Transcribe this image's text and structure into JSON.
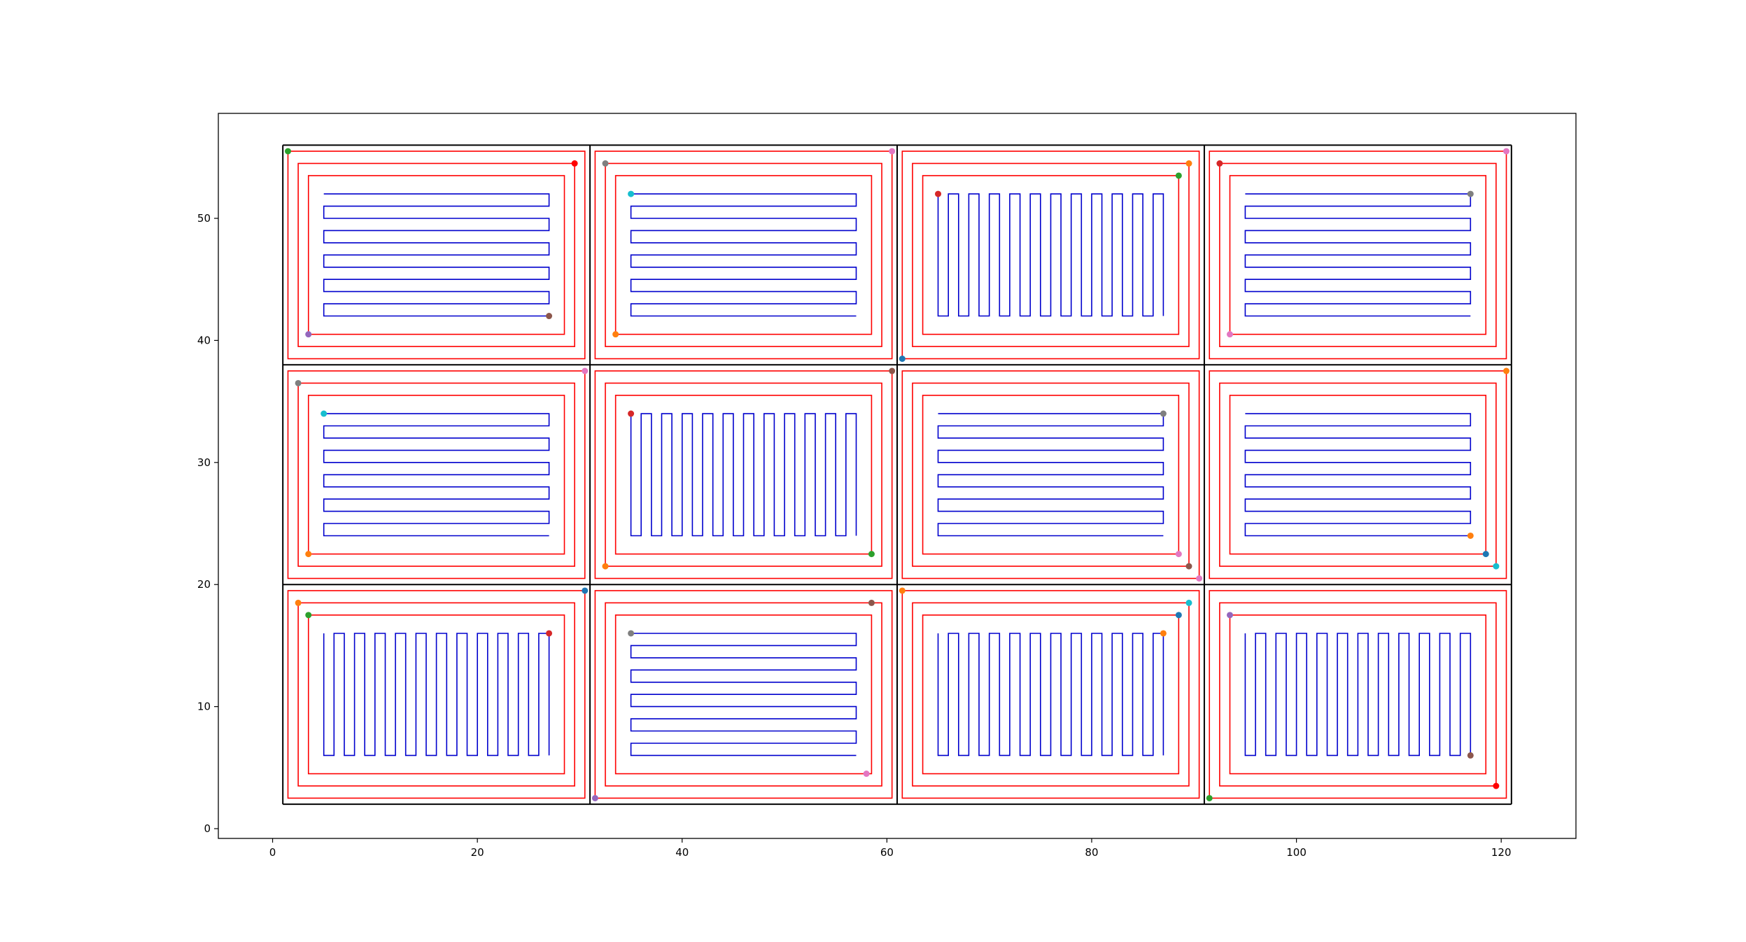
{
  "chart_data": {
    "type": "line",
    "title": "",
    "xlabel": "",
    "ylabel": "",
    "xlim": [
      -5.3,
      127.3
    ],
    "ylim": [
      -0.8,
      58.6
    ],
    "x_ticks": [
      0,
      20,
      40,
      60,
      80,
      100,
      120
    ],
    "y_ticks": [
      0,
      10,
      20,
      30,
      40,
      50
    ],
    "x_tick_labels": [
      "0",
      "20",
      "40",
      "60",
      "80",
      "100",
      "120"
    ],
    "y_tick_labels": [
      "0",
      "10",
      "20",
      "30",
      "40",
      "50"
    ],
    "grid": false,
    "legend": false,
    "colors": {
      "cell_border": "#000000",
      "perimeter": "#ff0000",
      "fill_path": "#0000cd"
    },
    "field": {
      "x_min": 1,
      "x_max": 121,
      "y_min": 2,
      "y_max": 56
    },
    "cell_edges_x": [
      1,
      31,
      61,
      91,
      121
    ],
    "cell_edges_y": [
      2,
      20,
      38,
      56
    ],
    "perimeter_offsets": [
      0.5,
      1.5,
      2.5
    ],
    "cells": [
      {
        "x0": 1,
        "x1": 31,
        "y0": 38,
        "y1": 56,
        "pattern": "horizontal"
      },
      {
        "x0": 31,
        "x1": 61,
        "y0": 38,
        "y1": 56,
        "pattern": "horizontal"
      },
      {
        "x0": 61,
        "x1": 91,
        "y0": 38,
        "y1": 56,
        "pattern": "vertical"
      },
      {
        "x0": 91,
        "x1": 121,
        "y0": 38,
        "y1": 56,
        "pattern": "horizontal"
      },
      {
        "x0": 1,
        "x1": 31,
        "y0": 20,
        "y1": 38,
        "pattern": "horizontal"
      },
      {
        "x0": 31,
        "x1": 61,
        "y0": 20,
        "y1": 38,
        "pattern": "vertical"
      },
      {
        "x0": 61,
        "x1": 91,
        "y0": 20,
        "y1": 38,
        "pattern": "horizontal"
      },
      {
        "x0": 91,
        "x1": 121,
        "y0": 20,
        "y1": 38,
        "pattern": "horizontal"
      },
      {
        "x0": 1,
        "x1": 31,
        "y0": 2,
        "y1": 20,
        "pattern": "vertical"
      },
      {
        "x0": 31,
        "x1": 61,
        "y0": 2,
        "y1": 20,
        "pattern": "horizontal"
      },
      {
        "x0": 61,
        "x1": 91,
        "y0": 2,
        "y1": 20,
        "pattern": "vertical"
      },
      {
        "x0": 91,
        "x1": 121,
        "y0": 2,
        "y1": 20,
        "pattern": "vertical"
      }
    ],
    "markers": [
      {
        "x": 1.5,
        "y": 55.5,
        "color": "#2ca02c"
      },
      {
        "x": 29.5,
        "y": 54.5,
        "color": "#ff0000"
      },
      {
        "x": 27,
        "y": 42,
        "color": "#8c564b"
      },
      {
        "x": 3.5,
        "y": 40.5,
        "color": "#9467bd"
      },
      {
        "x": 32.5,
        "y": 54.5,
        "color": "#7f7f7f"
      },
      {
        "x": 60.5,
        "y": 55.5,
        "color": "#e377c2"
      },
      {
        "x": 35,
        "y": 52,
        "color": "#17becf"
      },
      {
        "x": 33.5,
        "y": 40.5,
        "color": "#ff7f0e"
      },
      {
        "x": 65,
        "y": 52,
        "color": "#d62728"
      },
      {
        "x": 89.5,
        "y": 54.5,
        "color": "#ff7f0e"
      },
      {
        "x": 88.5,
        "y": 53.5,
        "color": "#2ca02c"
      },
      {
        "x": 61.5,
        "y": 38.5,
        "color": "#1f77b4"
      },
      {
        "x": 92.5,
        "y": 54.5,
        "color": "#d62728"
      },
      {
        "x": 120.5,
        "y": 55.5,
        "color": "#e377c2"
      },
      {
        "x": 117,
        "y": 52,
        "color": "#7f7f7f"
      },
      {
        "x": 93.5,
        "y": 40.5,
        "color": "#e377c2"
      },
      {
        "x": 2.5,
        "y": 36.5,
        "color": "#7f7f7f"
      },
      {
        "x": 30.5,
        "y": 37.5,
        "color": "#e377c2"
      },
      {
        "x": 5,
        "y": 34,
        "color": "#17becf"
      },
      {
        "x": 3.5,
        "y": 22.5,
        "color": "#ff7f0e"
      },
      {
        "x": 60.5,
        "y": 37.5,
        "color": "#8c564b"
      },
      {
        "x": 35,
        "y": 34,
        "color": "#d62728"
      },
      {
        "x": 58.5,
        "y": 22.5,
        "color": "#2ca02c"
      },
      {
        "x": 32.5,
        "y": 21.5,
        "color": "#ff7f0e"
      },
      {
        "x": 87,
        "y": 34,
        "color": "#7f7f7f"
      },
      {
        "x": 88.5,
        "y": 22.5,
        "color": "#e377c2"
      },
      {
        "x": 89.5,
        "y": 21.5,
        "color": "#8c564b"
      },
      {
        "x": 90.5,
        "y": 20.5,
        "color": "#e377c2"
      },
      {
        "x": 120.5,
        "y": 37.5,
        "color": "#ff7f0e"
      },
      {
        "x": 117,
        "y": 24,
        "color": "#ff7f0e"
      },
      {
        "x": 118.5,
        "y": 22.5,
        "color": "#1f77b4"
      },
      {
        "x": 119.5,
        "y": 21.5,
        "color": "#17becf"
      },
      {
        "x": 2.5,
        "y": 18.5,
        "color": "#ff7f0e"
      },
      {
        "x": 3.5,
        "y": 17.5,
        "color": "#2ca02c"
      },
      {
        "x": 27,
        "y": 16,
        "color": "#d62728"
      },
      {
        "x": 30.5,
        "y": 19.5,
        "color": "#1f77b4"
      },
      {
        "x": 35,
        "y": 16,
        "color": "#7f7f7f"
      },
      {
        "x": 58.5,
        "y": 18.5,
        "color": "#8c564b"
      },
      {
        "x": 58,
        "y": 4.5,
        "color": "#e377c2"
      },
      {
        "x": 31.5,
        "y": 2.5,
        "color": "#9467bd"
      },
      {
        "x": 61.5,
        "y": 19.5,
        "color": "#ff7f0e"
      },
      {
        "x": 89.5,
        "y": 18.5,
        "color": "#17becf"
      },
      {
        "x": 88.5,
        "y": 17.5,
        "color": "#1f77b4"
      },
      {
        "x": 87,
        "y": 16,
        "color": "#ff7f0e"
      },
      {
        "x": 93.5,
        "y": 17.5,
        "color": "#9467bd"
      },
      {
        "x": 117,
        "y": 6,
        "color": "#8c564b"
      },
      {
        "x": 119.5,
        "y": 3.5,
        "color": "#ff0000"
      },
      {
        "x": 91.5,
        "y": 2.5,
        "color": "#2ca02c"
      }
    ]
  }
}
